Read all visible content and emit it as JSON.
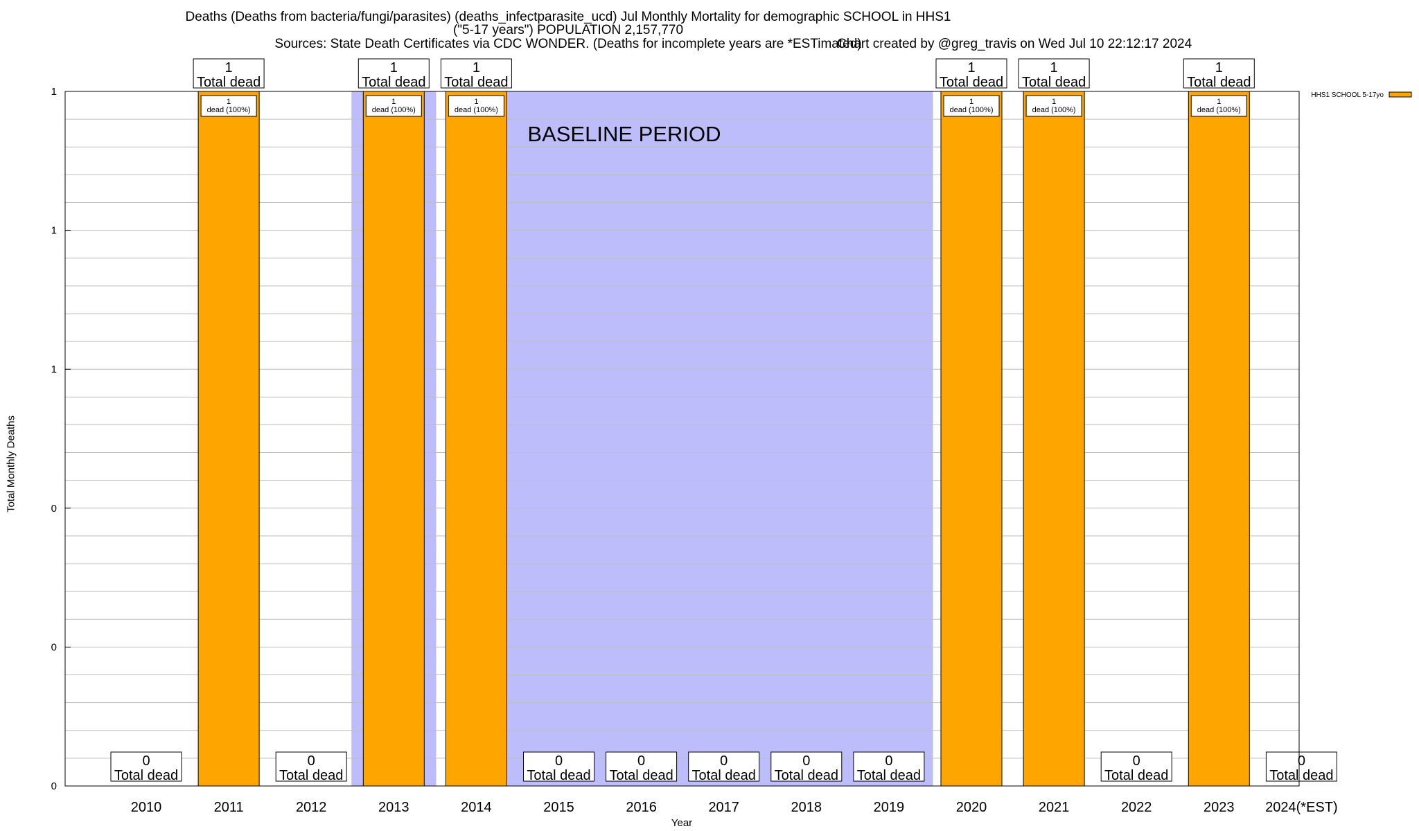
{
  "title": {
    "line1": "Deaths (Deaths from bacteria/fungi/parasites) (deaths_infectparasite_ucd) Jul Monthly Mortality for demographic SCHOOL in HHS1",
    "line2": "(\"5-17 years\") POPULATION 2,157,770",
    "line3": "Sources: State Death Certificates via CDC WONDER. (Deaths for incomplete years are *ESTimated)",
    "credit": "Chart created by @greg_travis on Wed Jul 10 22:12:17 2024"
  },
  "chart_data": {
    "type": "bar",
    "categories": [
      "2010",
      "2011",
      "2012",
      "2013",
      "2014",
      "2015",
      "2016",
      "2017",
      "2018",
      "2019",
      "2020",
      "2021",
      "2022",
      "2023",
      "2024(*EST)"
    ],
    "series": [
      {
        "name": "HHS1 SCHOOL 5-17yo",
        "values": [
          0,
          1,
          0,
          1,
          1,
          0,
          0,
          0,
          0,
          0,
          1,
          1,
          0,
          1,
          0
        ]
      }
    ],
    "top_labels": [
      "0\nTotal dead",
      "1\nTotal dead",
      "0\nTotal dead",
      "1\nTotal dead",
      "1\nTotal dead",
      "0\nTotal dead",
      "0\nTotal dead",
      "0\nTotal dead",
      "0\nTotal dead",
      "0\nTotal dead",
      "1\nTotal dead",
      "1\nTotal dead",
      "0\nTotal dead",
      "1\nTotal dead",
      "0\nTotal dead"
    ],
    "inner_label": "1\ndead (100%)",
    "xlabel": "Year",
    "ylabel": "Total Monthly Deaths",
    "ylim": [
      0,
      1
    ],
    "yticks": [
      "0",
      "0",
      "0",
      "1",
      "1",
      "1"
    ],
    "grid": true,
    "legend_position": "top-right",
    "colors": {
      "bar": "#FFA500",
      "baseline_shade": "#BDBDFB",
      "gridline": "#BEBEBE"
    },
    "shaded_regions": [
      {
        "label": "",
        "from": "2012",
        "to": "2014"
      },
      {
        "label": "BASELINE PERIOD",
        "from": "2014",
        "to": "2019"
      }
    ]
  }
}
